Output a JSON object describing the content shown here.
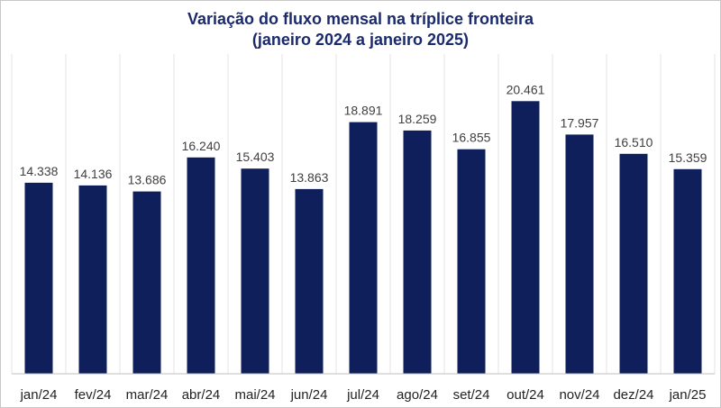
{
  "chart_data": {
    "type": "bar",
    "title": "Variação do fluxo mensal na tríplice fronteira",
    "subtitle": "(janeiro 2024 a janeiro 2025)",
    "categories": [
      "jan/24",
      "fev/24",
      "mar/24",
      "abr/24",
      "mai/24",
      "jun/24",
      "jul/24",
      "ago/24",
      "set/24",
      "out/24",
      "nov/24",
      "dez/24",
      "jan/25"
    ],
    "values": [
      14338,
      14136,
      13686,
      16240,
      15403,
      13863,
      18891,
      18259,
      16855,
      20461,
      17957,
      16510,
      15359
    ],
    "data_labels": [
      "14.338",
      "14.136",
      "13.686",
      "16.240",
      "15.403",
      "13.863",
      "18.891",
      "18.259",
      "16.855",
      "20.461",
      "17.957",
      "16.510",
      "15.359"
    ],
    "ylim": [
      0,
      24000
    ],
    "xlabel": "",
    "ylabel": "",
    "grid": "vertical",
    "bar_color": "#0e1f5b"
  }
}
